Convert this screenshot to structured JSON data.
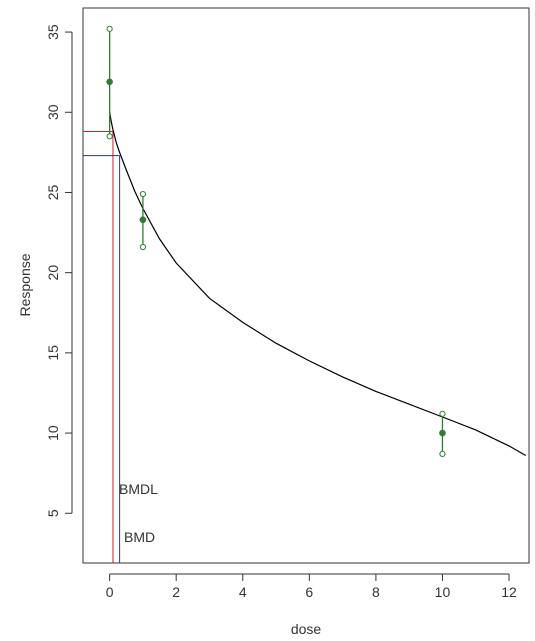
{
  "chart_data": {
    "type": "scatter",
    "title": "",
    "xlabel": "dose",
    "ylabel": "Response",
    "xlim": [
      -0.8,
      12.6
    ],
    "ylim": [
      1.9,
      36.5
    ],
    "x_ticks": [
      0,
      2,
      4,
      6,
      8,
      10,
      12
    ],
    "y_ticks": [
      5,
      10,
      15,
      20,
      25,
      30,
      35
    ],
    "grid": false,
    "legend": "none",
    "observations": [
      {
        "dose": 0,
        "mean": 31.9,
        "lower": 28.5,
        "upper": 35.2
      },
      {
        "dose": 1,
        "mean": 23.3,
        "lower": 21.6,
        "upper": 24.9
      },
      {
        "dose": 10,
        "mean": 10.0,
        "lower": 8.7,
        "upper": 11.2
      }
    ],
    "fit_curve": {
      "x": [
        0,
        0.05,
        0.1,
        0.2,
        0.3,
        0.5,
        0.75,
        1,
        1.5,
        2,
        3,
        4,
        5,
        6,
        7,
        8,
        9,
        10,
        11,
        12,
        12.5
      ],
      "y": [
        30.0,
        29.4,
        28.9,
        28.1,
        27.5,
        26.4,
        25.1,
        24.0,
        22.1,
        20.6,
        18.4,
        16.9,
        15.6,
        14.5,
        13.5,
        12.6,
        11.8,
        11.0,
        10.2,
        9.2,
        8.6
      ]
    },
    "bmdl": {
      "label": "BMDL",
      "dose": 0.1,
      "response": 28.8
    },
    "bmd": {
      "label": "BMD",
      "dose": 0.3,
      "response": 27.3
    },
    "colors": {
      "observations": "#2e7d32",
      "curve": "#000000",
      "bmdl": "#c62828",
      "bmd": "#283593",
      "axis": "#333333"
    }
  }
}
